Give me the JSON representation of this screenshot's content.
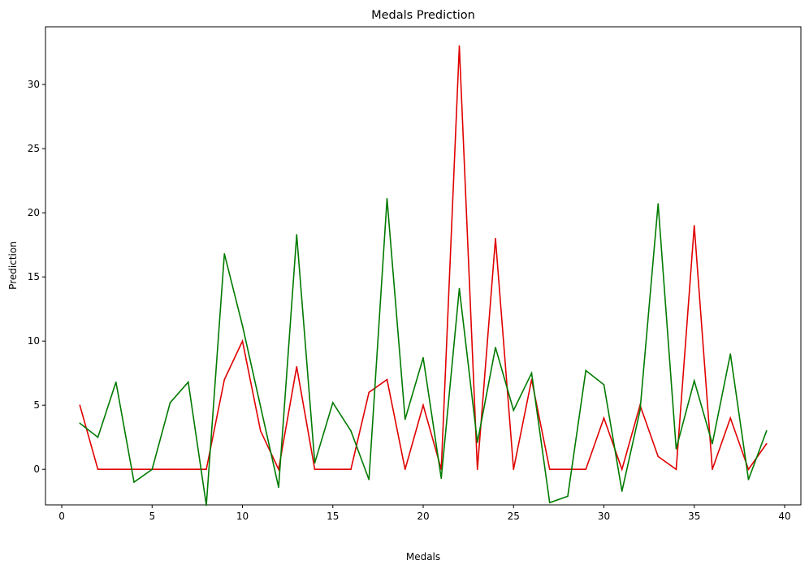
{
  "chart_data": {
    "type": "line",
    "title": "Medals Prediction",
    "xlabel": "Medals",
    "ylabel": "Prediction",
    "xlim": [
      -0.9,
      40.9
    ],
    "ylim": [
      -2.77,
      34.5
    ],
    "xticks": [
      0,
      5,
      10,
      15,
      20,
      25,
      30,
      35,
      40
    ],
    "yticks": [
      0,
      5,
      10,
      15,
      20,
      25,
      30
    ],
    "grid": false,
    "legend": "none",
    "x": [
      1,
      2,
      3,
      4,
      5,
      6,
      7,
      8,
      9,
      10,
      11,
      12,
      13,
      14,
      15,
      16,
      17,
      18,
      19,
      20,
      21,
      22,
      23,
      24,
      25,
      26,
      27,
      28,
      29,
      30,
      31,
      32,
      33,
      34,
      35,
      36,
      37,
      38,
      39
    ],
    "series": [
      {
        "color": "#e00000",
        "values": [
          5,
          0,
          0,
          0,
          0,
          0,
          0,
          0,
          7,
          10,
          3,
          0,
          8,
          0,
          0,
          0,
          6,
          7,
          0,
          5,
          0,
          33,
          0,
          18,
          0,
          7,
          0,
          0,
          0,
          4,
          0,
          5,
          1,
          0,
          19,
          0,
          4,
          0,
          2
        ]
      },
      {
        "color": "#007a00",
        "values": [
          3.6,
          2.5,
          6.8,
          -1.0,
          0.0,
          5.2,
          6.8,
          -2.8,
          16.8,
          11.2,
          4.9,
          -1.4,
          18.3,
          0.5,
          5.2,
          3.0,
          -0.8,
          21.1,
          3.9,
          8.7,
          -0.7,
          14.1,
          2.1,
          9.5,
          4.6,
          7.5,
          -2.6,
          -2.1,
          7.7,
          6.6,
          -1.7,
          4.6,
          20.7,
          1.6,
          6.9,
          2.0,
          9.0,
          -0.8,
          3.0
        ]
      }
    ]
  }
}
